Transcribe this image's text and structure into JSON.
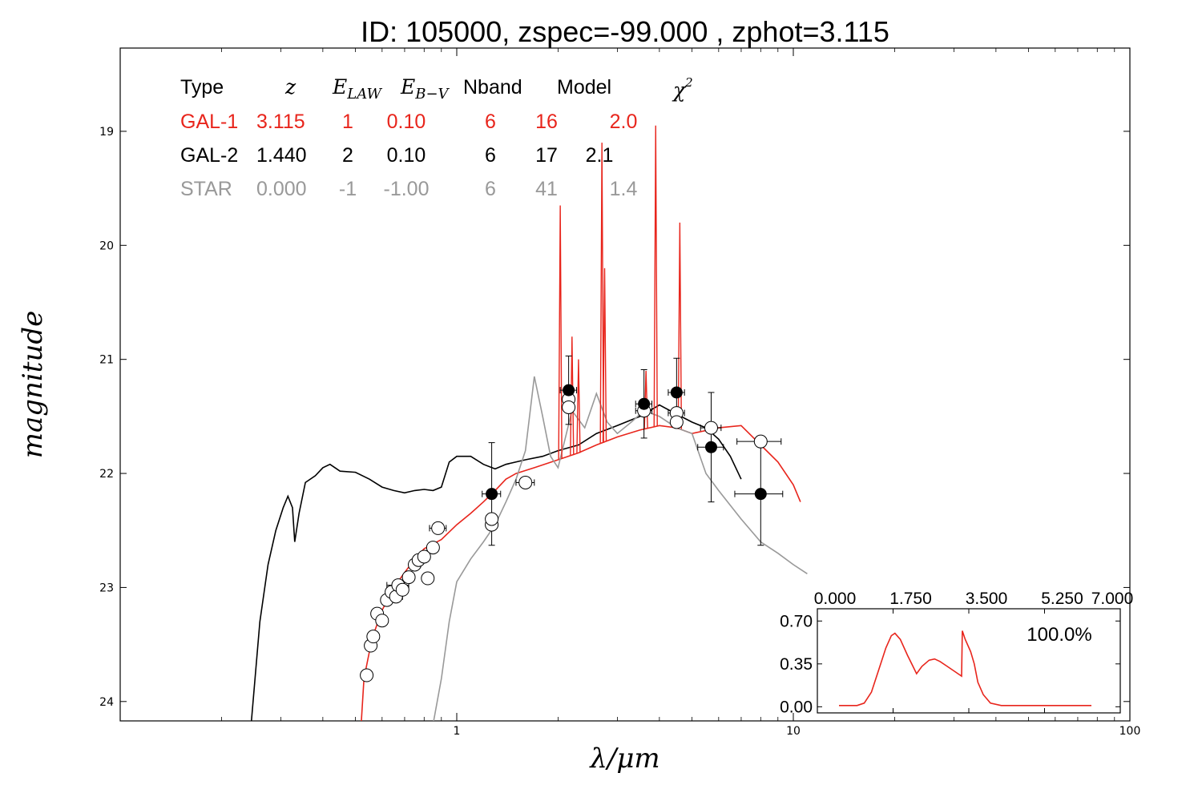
{
  "chart_data": [
    {
      "type": "scatter",
      "title": "ID:  105000, zspec=-99.000 , zphot=3.115",
      "xlabel": "λ/μm",
      "ylabel": "magnitude",
      "x_scale": "log",
      "xlim": [
        0.1,
        100
      ],
      "ylim": [
        24.17,
        18.27
      ],
      "y_inverted": true,
      "x_ticks": [
        "1",
        "10",
        "100"
      ],
      "y_ticks": [
        "19",
        "20",
        "21",
        "22",
        "23",
        "24"
      ],
      "grid": false,
      "table": {
        "headers": [
          "Type",
          "z",
          "E_{LAW}",
          "E_{B-V}",
          "Nband",
          "Model",
          "χ²"
        ],
        "headers_display": {
          "type": "Type",
          "z": "z",
          "elaw_main": "E",
          "elaw_sub": "LAW",
          "ebv_main": "E",
          "ebv_sub": "B−V",
          "nband": "Nband",
          "model": "Model",
          "chi_main": "χ",
          "chi_sup": "2"
        },
        "rows": [
          {
            "type": "GAL-1",
            "z": "3.115",
            "elaw": "1",
            "ebv": "0.10",
            "nband": "6",
            "model": "16",
            "chi2": "2.0",
            "color": "#e8251c"
          },
          {
            "type": "GAL-2",
            "z": "1.440",
            "elaw": "2",
            "ebv": "0.10",
            "nband": "6",
            "model": "17",
            "chi2": "2.1",
            "color": "#000000"
          },
          {
            "type": "STAR",
            "z": "0.000",
            "elaw": "-1",
            "ebv": "-1.00",
            "nband": "6",
            "model": "41",
            "chi2": "1.4",
            "color": "#999999"
          }
        ]
      },
      "model_curves": [
        {
          "color": "#000000",
          "points": [
            [
              0.245,
              24.2
            ],
            [
              0.26,
              23.3
            ],
            [
              0.275,
              22.8
            ],
            [
              0.29,
              22.5
            ],
            [
              0.305,
              22.3
            ],
            [
              0.315,
              22.2
            ],
            [
              0.325,
              22.3
            ],
            [
              0.33,
              22.6
            ],
            [
              0.34,
              22.35
            ],
            [
              0.355,
              22.08
            ],
            [
              0.38,
              22.02
            ],
            [
              0.4,
              21.95
            ],
            [
              0.42,
              21.92
            ],
            [
              0.45,
              21.98
            ],
            [
              0.5,
              21.99
            ],
            [
              0.55,
              22.05
            ],
            [
              0.6,
              22.12
            ],
            [
              0.65,
              22.15
            ],
            [
              0.7,
              22.17
            ],
            [
              0.75,
              22.15
            ],
            [
              0.8,
              22.14
            ],
            [
              0.85,
              22.15
            ],
            [
              0.9,
              22.12
            ],
            [
              0.95,
              21.9
            ],
            [
              1.0,
              21.85
            ],
            [
              1.1,
              21.85
            ],
            [
              1.2,
              21.92
            ],
            [
              1.3,
              21.96
            ],
            [
              1.4,
              21.92
            ],
            [
              1.6,
              21.88
            ],
            [
              1.8,
              21.85
            ],
            [
              2.0,
              21.8
            ],
            [
              2.3,
              21.75
            ],
            [
              2.6,
              21.65
            ],
            [
              3.0,
              21.58
            ],
            [
              3.5,
              21.5
            ],
            [
              4.0,
              21.4
            ],
            [
              4.5,
              21.48
            ],
            [
              5.0,
              21.55
            ],
            [
              5.5,
              21.6
            ],
            [
              6.0,
              21.7
            ],
            [
              6.5,
              21.85
            ],
            [
              7.0,
              22.05
            ]
          ]
        },
        {
          "color": "#e8251c",
          "points": [
            [
              0.52,
              24.2
            ],
            [
              0.53,
              23.8
            ],
            [
              0.56,
              23.45
            ],
            [
              0.6,
              23.2
            ],
            [
              0.65,
              23.0
            ],
            [
              0.7,
              22.87
            ],
            [
              0.75,
              22.75
            ],
            [
              0.8,
              22.66
            ],
            [
              0.9,
              22.58
            ],
            [
              1.0,
              22.45
            ],
            [
              1.1,
              22.35
            ],
            [
              1.2,
              22.25
            ],
            [
              1.3,
              22.15
            ],
            [
              1.4,
              22.05
            ],
            [
              1.5,
              22.0
            ],
            [
              1.7,
              21.95
            ],
            [
              2.0,
              21.88
            ],
            [
              2.3,
              21.82
            ],
            [
              2.6,
              21.75
            ],
            [
              3.0,
              21.68
            ],
            [
              3.5,
              21.62
            ],
            [
              4.0,
              21.58
            ],
            [
              4.5,
              21.6
            ],
            [
              5.0,
              21.65
            ],
            [
              6.0,
              21.6
            ],
            [
              7.0,
              21.58
            ],
            [
              8.0,
              21.75
            ],
            [
              9.0,
              21.9
            ],
            [
              10.0,
              22.1
            ],
            [
              10.5,
              22.25
            ]
          ]
        },
        {
          "color": "#999999",
          "points": [
            [
              0.85,
              24.2
            ],
            [
              0.9,
              23.8
            ],
            [
              0.95,
              23.3
            ],
            [
              1.0,
              22.95
            ],
            [
              1.1,
              22.75
            ],
            [
              1.2,
              22.6
            ],
            [
              1.3,
              22.45
            ],
            [
              1.4,
              22.25
            ],
            [
              1.5,
              22.05
            ],
            [
              1.6,
              21.8
            ],
            [
              1.7,
              21.15
            ],
            [
              1.8,
              21.5
            ],
            [
              1.9,
              21.85
            ],
            [
              2.0,
              21.95
            ],
            [
              2.2,
              21.45
            ],
            [
              2.4,
              21.6
            ],
            [
              2.6,
              21.3
            ],
            [
              2.8,
              21.55
            ],
            [
              3.0,
              21.65
            ],
            [
              3.3,
              21.55
            ],
            [
              3.6,
              21.45
            ],
            [
              4.0,
              21.5
            ],
            [
              4.5,
              21.6
            ],
            [
              5.0,
              21.65
            ],
            [
              5.5,
              22.0
            ],
            [
              6.0,
              22.15
            ],
            [
              7.0,
              22.4
            ],
            [
              8.0,
              22.6
            ],
            [
              9.0,
              22.7
            ],
            [
              10.0,
              22.8
            ],
            [
              11.0,
              22.88
            ]
          ]
        }
      ],
      "emission_lines": [
        {
          "x": 2.03,
          "top": 19.65
        },
        {
          "x": 2.2,
          "top": 20.8
        },
        {
          "x": 2.3,
          "top": 21.0
        },
        {
          "x": 2.7,
          "top": 19.1
        },
        {
          "x": 2.75,
          "top": 20.2
        },
        {
          "x": 3.65,
          "top": 21.1
        },
        {
          "x": 3.9,
          "top": 18.95
        },
        {
          "x": 4.6,
          "top": 19.8
        }
      ],
      "observed_open": [
        {
          "x": 0.54,
          "y": 23.77,
          "xerr": 0.0
        },
        {
          "x": 0.555,
          "y": 23.51,
          "xerr": 0.0
        },
        {
          "x": 0.565,
          "y": 23.43,
          "xerr": 0.02
        },
        {
          "x": 0.58,
          "y": 23.23,
          "xerr": 0.0
        },
        {
          "x": 0.6,
          "y": 23.29,
          "xerr": 0.0
        },
        {
          "x": 0.62,
          "y": 23.11,
          "xerr": 0.0
        },
        {
          "x": 0.64,
          "y": 23.04,
          "xerr": 0.0
        },
        {
          "x": 0.66,
          "y": 23.08,
          "xerr": 0.03
        },
        {
          "x": 0.67,
          "y": 22.98,
          "xerr": 0.05
        },
        {
          "x": 0.69,
          "y": 23.02,
          "xerr": 0.0
        },
        {
          "x": 0.72,
          "y": 22.91,
          "xerr": 0.0
        },
        {
          "x": 0.75,
          "y": 22.8,
          "xerr": 0.02
        },
        {
          "x": 0.77,
          "y": 22.76,
          "xerr": 0.0
        },
        {
          "x": 0.8,
          "y": 22.73,
          "xerr": 0.03
        },
        {
          "x": 0.82,
          "y": 22.92,
          "xerr": 0.0
        },
        {
          "x": 0.85,
          "y": 22.65,
          "xerr": 0.03
        },
        {
          "x": 0.88,
          "y": 22.48,
          "xerr": 0.05
        },
        {
          "x": 1.27,
          "y": 22.45,
          "xerr": 0.04
        },
        {
          "x": 1.27,
          "y": 22.4,
          "xerr": 0.0
        },
        {
          "x": 1.6,
          "y": 22.08,
          "xerr": 0.1
        },
        {
          "x": 2.15,
          "y": 21.35,
          "xerr": 0.05
        },
        {
          "x": 2.15,
          "y": 21.42,
          "xerr": 0.0
        },
        {
          "x": 3.6,
          "y": 21.45,
          "xerr": 0.2
        },
        {
          "x": 4.5,
          "y": 21.47,
          "xerr": 0.25
        },
        {
          "x": 4.5,
          "y": 21.55,
          "xerr": 0.0
        },
        {
          "x": 5.7,
          "y": 21.6,
          "xerr": 0.4
        },
        {
          "x": 8.0,
          "y": 21.72,
          "xerr": 1.2
        }
      ],
      "observed_filled": [
        {
          "x": 1.27,
          "y": 22.18,
          "xerr": 0.08,
          "yerr": 0.45
        },
        {
          "x": 2.15,
          "y": 21.27,
          "xerr": 0.12,
          "yerr": 0.3
        },
        {
          "x": 3.6,
          "y": 21.39,
          "xerr": 0.2,
          "yerr": 0.3
        },
        {
          "x": 4.5,
          "y": 21.29,
          "xerr": 0.25,
          "yerr": 0.3
        },
        {
          "x": 5.7,
          "y": 21.77,
          "xerr": 0.5,
          "yerr": 0.48
        },
        {
          "x": 8.0,
          "y": 22.18,
          "xerr": 1.3,
          "yerr": 0.45
        }
      ]
    },
    {
      "type": "line",
      "title": "",
      "xlim": [
        -0.6,
        7.8
      ],
      "ylim": [
        -0.05,
        0.8
      ],
      "x_ticks": [
        "0.000",
        "1.750",
        "3.500",
        "5.250",
        "7.000"
      ],
      "y_ticks": [
        "0.00",
        "0.35",
        "0.70"
      ],
      "annotation": "100.0%",
      "color": "#e8251c",
      "points": [
        [
          0.0,
          0.01
        ],
        [
          0.5,
          0.01
        ],
        [
          0.7,
          0.03
        ],
        [
          0.9,
          0.12
        ],
        [
          1.1,
          0.3
        ],
        [
          1.3,
          0.48
        ],
        [
          1.45,
          0.58
        ],
        [
          1.55,
          0.6
        ],
        [
          1.7,
          0.55
        ],
        [
          1.9,
          0.42
        ],
        [
          2.05,
          0.33
        ],
        [
          2.15,
          0.27
        ],
        [
          2.3,
          0.33
        ],
        [
          2.5,
          0.38
        ],
        [
          2.65,
          0.39
        ],
        [
          2.8,
          0.37
        ],
        [
          3.0,
          0.33
        ],
        [
          3.2,
          0.29
        ],
        [
          3.4,
          0.25
        ],
        [
          3.42,
          0.62
        ],
        [
          3.5,
          0.55
        ],
        [
          3.65,
          0.45
        ],
        [
          3.75,
          0.35
        ],
        [
          3.85,
          0.2
        ],
        [
          4.0,
          0.1
        ],
        [
          4.2,
          0.03
        ],
        [
          4.5,
          0.01
        ],
        [
          5.0,
          0.01
        ],
        [
          6.0,
          0.01
        ],
        [
          7.0,
          0.01
        ]
      ]
    }
  ]
}
